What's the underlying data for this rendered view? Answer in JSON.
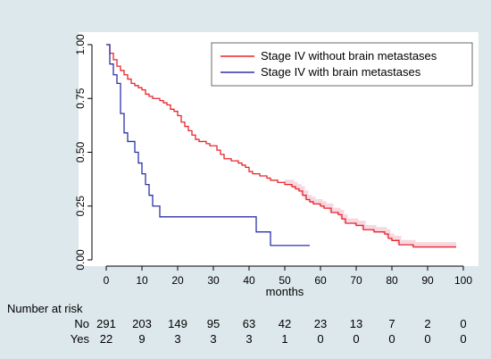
{
  "colors": {
    "background": "#dde8ec",
    "plot_area": "#ffffff",
    "series_without": "#e8252b",
    "series_with": "#2b32a8",
    "band": "#f6d3dd"
  },
  "chart_data": {
    "type": "line",
    "xlabel": "months",
    "ylabel": "",
    "xlim": [
      0,
      100
    ],
    "ylim": [
      0,
      1
    ],
    "x_ticks": [
      "0",
      "10",
      "20",
      "30",
      "40",
      "50",
      "60",
      "70",
      "80",
      "90",
      "100"
    ],
    "y_ticks": [
      "0.00",
      "0.25",
      "0.50",
      "0.75",
      "1.00"
    ],
    "grid": false,
    "legend": "top-right",
    "series": [
      {
        "name": "Stage IV without brain metastases",
        "color": "#e8252b",
        "points": [
          [
            0,
            1
          ],
          [
            1,
            0.96
          ],
          [
            2,
            0.93
          ],
          [
            3,
            0.9
          ],
          [
            4,
            0.88
          ],
          [
            5,
            0.86
          ],
          [
            6,
            0.84
          ],
          [
            7,
            0.82
          ],
          [
            8,
            0.81
          ],
          [
            9,
            0.8
          ],
          [
            10,
            0.79
          ],
          [
            11,
            0.77
          ],
          [
            12,
            0.76
          ],
          [
            13,
            0.75
          ],
          [
            15,
            0.74
          ],
          [
            16,
            0.73
          ],
          [
            17,
            0.72
          ],
          [
            18,
            0.7
          ],
          [
            19,
            0.69
          ],
          [
            20,
            0.67
          ],
          [
            21,
            0.64
          ],
          [
            22,
            0.62
          ],
          [
            23,
            0.6
          ],
          [
            24,
            0.58
          ],
          [
            25,
            0.56
          ],
          [
            26,
            0.55
          ],
          [
            28,
            0.54
          ],
          [
            29,
            0.53
          ],
          [
            31,
            0.51
          ],
          [
            32,
            0.49
          ],
          [
            33,
            0.47
          ],
          [
            35,
            0.46
          ],
          [
            37,
            0.45
          ],
          [
            38,
            0.44
          ],
          [
            39,
            0.43
          ],
          [
            40,
            0.41
          ],
          [
            41,
            0.4
          ],
          [
            43,
            0.39
          ],
          [
            45,
            0.38
          ],
          [
            46,
            0.37
          ],
          [
            48,
            0.36
          ],
          [
            50,
            0.35
          ],
          [
            52,
            0.34
          ],
          [
            53,
            0.33
          ],
          [
            54,
            0.32
          ],
          [
            55,
            0.3
          ],
          [
            56,
            0.28
          ],
          [
            57,
            0.27
          ],
          [
            58,
            0.26
          ],
          [
            60,
            0.25
          ],
          [
            61,
            0.24
          ],
          [
            63,
            0.22
          ],
          [
            65,
            0.21
          ],
          [
            66,
            0.19
          ],
          [
            67,
            0.17
          ],
          [
            70,
            0.16
          ],
          [
            72,
            0.14
          ],
          [
            75,
            0.13
          ],
          [
            78,
            0.12
          ],
          [
            79,
            0.1
          ],
          [
            80,
            0.09
          ],
          [
            82,
            0.07
          ],
          [
            86,
            0.06
          ],
          [
            98,
            0.06
          ]
        ]
      },
      {
        "name": "Stage IV with brain metastases",
        "color": "#2b32a8",
        "points": [
          [
            0,
            1
          ],
          [
            1,
            0.91
          ],
          [
            2,
            0.86
          ],
          [
            3,
            0.82
          ],
          [
            4,
            0.68
          ],
          [
            5,
            0.59
          ],
          [
            6,
            0.55
          ],
          [
            8,
            0.5
          ],
          [
            9,
            0.45
          ],
          [
            10,
            0.4
          ],
          [
            11,
            0.35
          ],
          [
            12,
            0.3
          ],
          [
            13,
            0.25
          ],
          [
            15,
            0.2
          ],
          [
            42,
            0.13
          ],
          [
            46,
            0.067
          ],
          [
            57,
            0.067
          ]
        ]
      }
    ],
    "risk_table": {
      "title": "Number at risk",
      "rows": [
        {
          "label": "No",
          "values": [
            "291",
            "203",
            "149",
            "95",
            "63",
            "42",
            "23",
            "13",
            "7",
            "2",
            "0"
          ]
        },
        {
          "label": "Yes",
          "values": [
            "22",
            "9",
            "3",
            "3",
            "3",
            "1",
            "0",
            "0",
            "0",
            "0",
            "0"
          ]
        }
      ]
    }
  }
}
